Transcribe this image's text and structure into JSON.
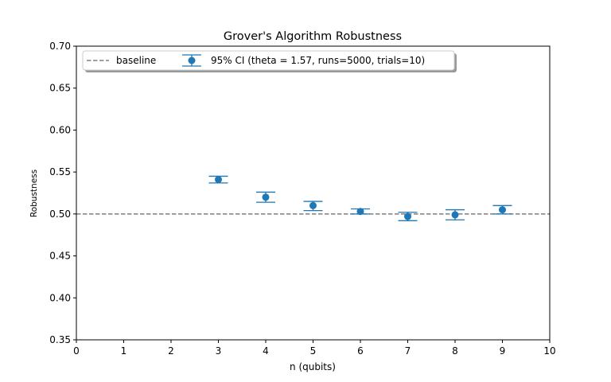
{
  "chart_data": {
    "type": "scatter",
    "title": "Grover's Algorithm Robustness",
    "xlabel": "n (qubits)",
    "ylabel": "Robustness",
    "xlim": [
      0,
      10
    ],
    "ylim": [
      0.35,
      0.7
    ],
    "xticks": [
      0,
      1,
      2,
      3,
      4,
      5,
      6,
      7,
      8,
      9,
      10
    ],
    "yticks": [
      "0.35",
      "0.40",
      "0.45",
      "0.50",
      "0.55",
      "0.60",
      "0.65",
      "0.70"
    ],
    "baseline": {
      "name": "baseline",
      "value": 0.5,
      "color": "#808080",
      "style": "dashed"
    },
    "series": [
      {
        "name": "95% CI (theta = 1.57, runs=5000, trials=10)",
        "color": "#1f77b4",
        "x": [
          3,
          4,
          5,
          6,
          7,
          8,
          9
        ],
        "y": [
          0.541,
          0.52,
          0.51,
          0.503,
          0.497,
          0.499,
          0.505
        ],
        "ci_low": [
          0.537,
          0.514,
          0.504,
          0.5,
          0.492,
          0.493,
          0.5
        ],
        "ci_high": [
          0.545,
          0.526,
          0.515,
          0.506,
          0.502,
          0.505,
          0.51
        ]
      }
    ],
    "legend_position": "top-left",
    "grid": false
  }
}
